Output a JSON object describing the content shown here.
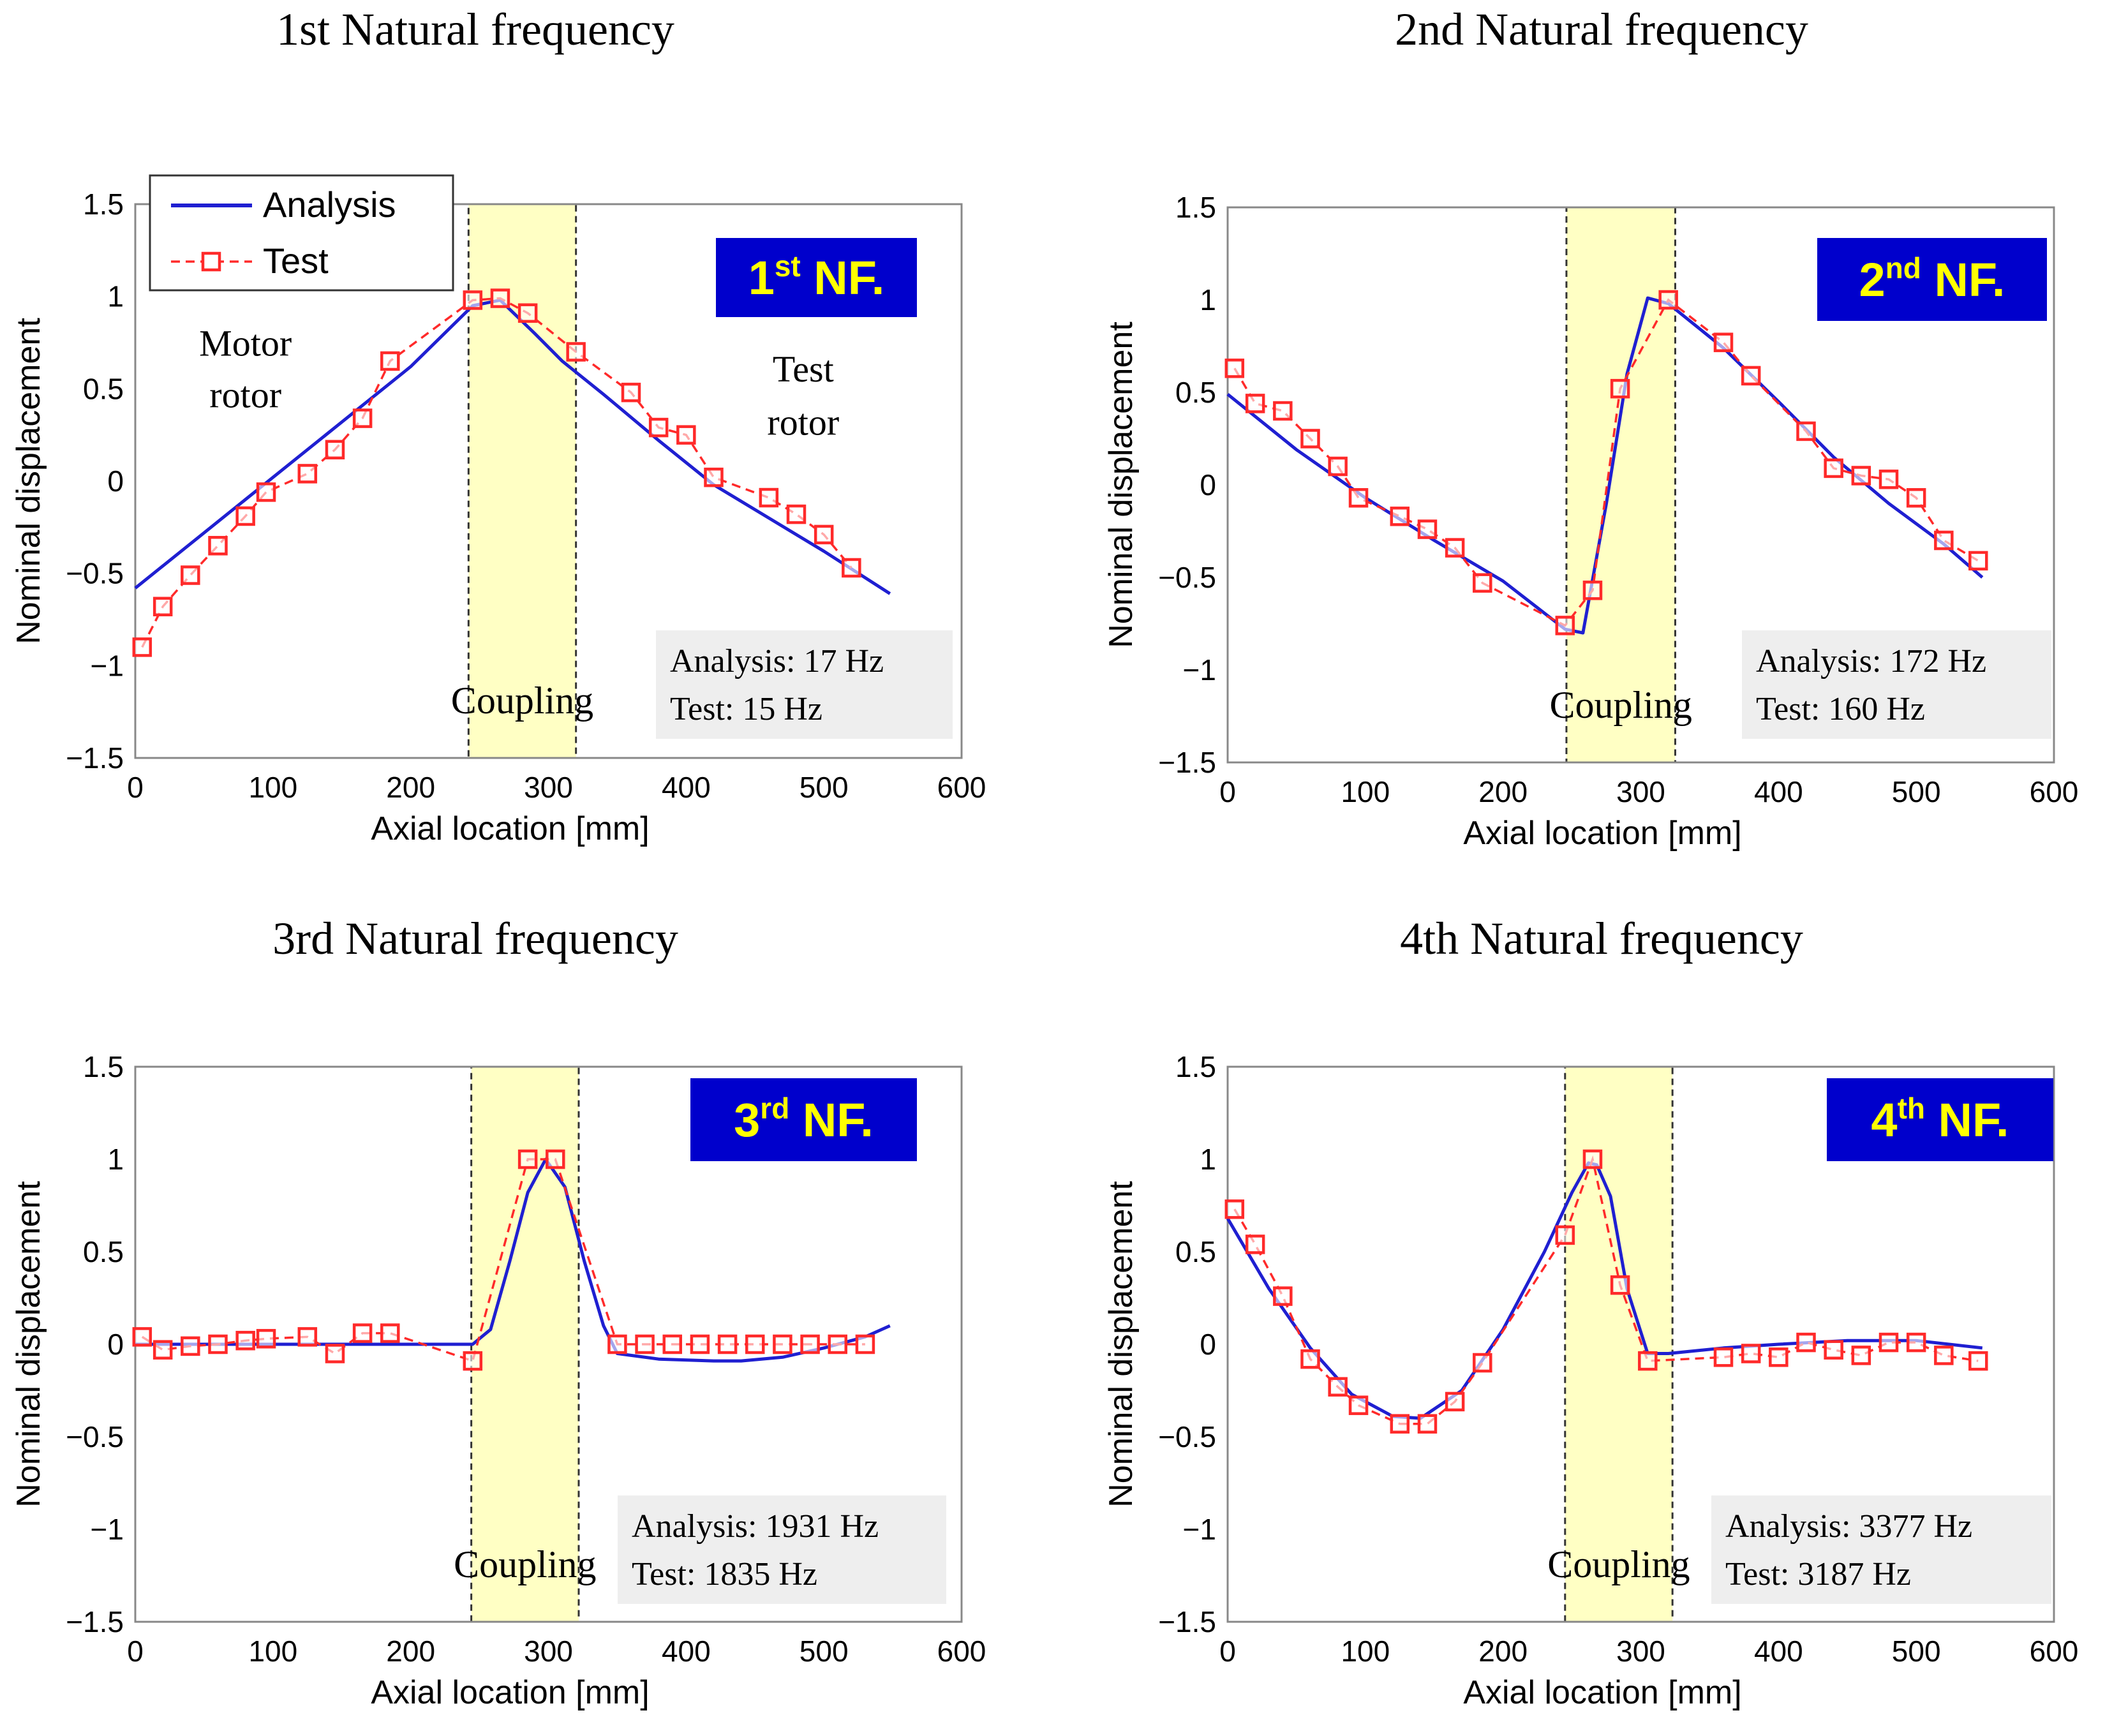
{
  "colors": {
    "analysis": "#1f1fd1",
    "test": "#ff2a2a",
    "coupling_fill": "#ffffc4",
    "badge_bg": "#0000cc",
    "badge_text": "#ffff00",
    "info_bg": "#eeeeee"
  },
  "legend": {
    "analysis": "Analysis",
    "test": "Test"
  },
  "chart_data": [
    {
      "type": "line",
      "title": "1st Natural frequency",
      "xlabel": "Axial location [mm]",
      "ylabel": "Nominal displacement",
      "xlim": [
        0,
        600
      ],
      "ylim": [
        -1.5,
        1.5
      ],
      "xticks": [
        "0",
        "100",
        "200",
        "300",
        "400",
        "500",
        "600"
      ],
      "yticks": [
        "1.5",
        "1",
        "0.5",
        "0",
        "−0.5",
        "−1",
        "−1.5"
      ],
      "badge": {
        "pre": "1",
        "sup": "st",
        "post": " NF."
      },
      "coupling_label": "Coupling",
      "coupling_range": [
        242,
        320
      ],
      "info": {
        "analysis": "Analysis:  17 Hz",
        "test": "Test: 15 Hz"
      },
      "annotations": {
        "left_1": "Motor",
        "left_2": "rotor",
        "right_1": "Test",
        "right_2": "rotor"
      },
      "series": [
        {
          "name": "Analysis",
          "style": "solid",
          "x": [
            0,
            50,
            100,
            150,
            200,
            245,
            265,
            290,
            310,
            340,
            380,
            420,
            460,
            500,
            548
          ],
          "y": [
            -0.58,
            -0.28,
            0.02,
            0.32,
            0.62,
            0.95,
            0.98,
            0.8,
            0.65,
            0.47,
            0.22,
            -0.02,
            -0.2,
            -0.38,
            -0.61
          ]
        },
        {
          "name": "Test",
          "style": "dashed",
          "x": [
            5,
            20,
            40,
            60,
            80,
            95,
            125,
            145,
            165,
            185,
            245,
            265,
            285,
            320,
            360,
            380,
            400,
            420,
            460,
            480,
            500,
            520
          ],
          "y": [
            -0.9,
            -0.68,
            -0.51,
            -0.35,
            -0.19,
            -0.06,
            0.04,
            0.17,
            0.34,
            0.65,
            0.98,
            0.99,
            0.91,
            0.7,
            0.48,
            0.29,
            0.25,
            0.02,
            -0.09,
            -0.18,
            -0.29,
            -0.47
          ]
        }
      ]
    },
    {
      "type": "line",
      "title": "2nd Natural frequency",
      "xlabel": "Axial location [mm]",
      "ylabel": "Nominal displacement",
      "xlim": [
        0,
        600
      ],
      "ylim": [
        -1.5,
        1.5
      ],
      "xticks": [
        "0",
        "100",
        "200",
        "300",
        "400",
        "500",
        "600"
      ],
      "yticks": [
        "1.5",
        "1",
        "0.5",
        "0",
        "−0.5",
        "−1",
        "−1.5"
      ],
      "badge": {
        "pre": "2",
        "sup": "nd",
        "post": " NF."
      },
      "coupling_label": "Coupling",
      "coupling_range": [
        246,
        325
      ],
      "info": {
        "analysis": "Analysis:  172 Hz",
        "test": "Test: 160 Hz"
      },
      "series": [
        {
          "name": "Analysis",
          "style": "solid",
          "x": [
            0,
            50,
            100,
            150,
            200,
            245,
            258,
            275,
            290,
            305,
            320,
            360,
            400,
            440,
            480,
            520,
            548
          ],
          "y": [
            0.49,
            0.19,
            -0.07,
            -0.3,
            -0.52,
            -0.78,
            -0.8,
            -0.1,
            0.6,
            1.01,
            0.98,
            0.74,
            0.45,
            0.15,
            -0.1,
            -0.32,
            -0.5
          ]
        },
        {
          "name": "Test",
          "style": "dashed",
          "x": [
            5,
            20,
            40,
            60,
            80,
            95,
            125,
            145,
            165,
            185,
            245,
            265,
            285,
            320,
            360,
            380,
            420,
            440,
            460,
            480,
            500,
            520,
            545
          ],
          "y": [
            0.63,
            0.44,
            0.4,
            0.25,
            0.1,
            -0.07,
            -0.17,
            -0.24,
            -0.34,
            -0.53,
            -0.76,
            -0.57,
            0.52,
            1.0,
            0.77,
            0.59,
            0.29,
            0.09,
            0.05,
            0.03,
            -0.07,
            -0.3,
            -0.41
          ]
        }
      ]
    },
    {
      "type": "line",
      "title": "3rd Natural frequency",
      "xlabel": "Axial location [mm]",
      "ylabel": "Nominal displacement",
      "xlim": [
        0,
        600
      ],
      "ylim": [
        -1.5,
        1.5
      ],
      "xticks": [
        "0",
        "100",
        "200",
        "300",
        "400",
        "500",
        "600"
      ],
      "yticks": [
        "1.5",
        "1",
        "0.5",
        "0",
        "−0.5",
        "−1",
        "−1.5"
      ],
      "badge": {
        "pre": "3",
        "sup": "rd",
        "post": " NF."
      },
      "coupling_label": "Coupling",
      "coupling_range": [
        244,
        322
      ],
      "info": {
        "analysis": "Analysis:  1931 Hz",
        "test": "Test: 1835 Hz"
      },
      "series": [
        {
          "name": "Analysis",
          "style": "solid",
          "x": [
            0,
            50,
            100,
            150,
            200,
            245,
            258,
            272,
            285,
            298,
            312,
            326,
            340,
            350,
            380,
            420,
            440,
            470,
            500,
            530,
            548
          ],
          "y": [
            0.0,
            0.0,
            0.0,
            0.0,
            0.0,
            0.0,
            0.08,
            0.45,
            0.82,
            1.0,
            0.85,
            0.45,
            0.1,
            -0.05,
            -0.08,
            -0.09,
            -0.09,
            -0.07,
            -0.02,
            0.04,
            0.1
          ]
        },
        {
          "name": "Test",
          "style": "dashed",
          "x": [
            5,
            20,
            40,
            60,
            80,
            95,
            125,
            145,
            165,
            185,
            245,
            285,
            305,
            350,
            370,
            390,
            410,
            430,
            450,
            470,
            490,
            510,
            530
          ],
          "y": [
            0.04,
            -0.03,
            -0.01,
            0.0,
            0.02,
            0.03,
            0.04,
            -0.05,
            0.06,
            0.06,
            -0.09,
            1.0,
            1.0,
            0.0,
            0.0,
            0.0,
            0.0,
            0.0,
            0.0,
            0.0,
            0.0,
            0.0,
            0.0
          ]
        }
      ]
    },
    {
      "type": "line",
      "title": "4th Natural frequency",
      "xlabel": "Axial location [mm]",
      "ylabel": "Nominal displacement",
      "xlim": [
        0,
        600
      ],
      "ylim": [
        -1.5,
        1.5
      ],
      "xticks": [
        "0",
        "100",
        "200",
        "300",
        "400",
        "500",
        "600"
      ],
      "yticks": [
        "1.5",
        "1",
        "0.5",
        "0",
        "−0.5",
        "−1",
        "−1.5"
      ],
      "badge": {
        "pre": "4",
        "sup": "th",
        "post": " NF."
      },
      "coupling_label": "Coupling",
      "coupling_range": [
        245,
        323
      ],
      "info": {
        "analysis": "Analysis:  3377 Hz",
        "test": "Test: 3187 Hz"
      },
      "series": [
        {
          "name": "Analysis",
          "style": "solid",
          "x": [
            0,
            30,
            60,
            90,
            120,
            140,
            170,
            200,
            230,
            250,
            262,
            268,
            278,
            290,
            305,
            320,
            360,
            400,
            450,
            500,
            548
          ],
          "y": [
            0.68,
            0.3,
            -0.02,
            -0.27,
            -0.39,
            -0.4,
            -0.25,
            0.08,
            0.5,
            0.82,
            0.98,
            0.97,
            0.8,
            0.3,
            -0.05,
            -0.05,
            -0.02,
            0.0,
            0.02,
            0.02,
            -0.02
          ]
        },
        {
          "name": "Test",
          "style": "dashed",
          "x": [
            5,
            20,
            40,
            60,
            80,
            95,
            125,
            145,
            165,
            185,
            245,
            265,
            285,
            305,
            360,
            380,
            400,
            420,
            440,
            460,
            480,
            500,
            520,
            545
          ],
          "y": [
            0.73,
            0.54,
            0.26,
            -0.08,
            -0.23,
            -0.33,
            -0.43,
            -0.43,
            -0.31,
            -0.1,
            0.59,
            1.0,
            0.32,
            -0.09,
            -0.07,
            -0.05,
            -0.07,
            0.01,
            -0.03,
            -0.06,
            0.01,
            0.01,
            -0.06,
            -0.09
          ]
        }
      ]
    }
  ]
}
